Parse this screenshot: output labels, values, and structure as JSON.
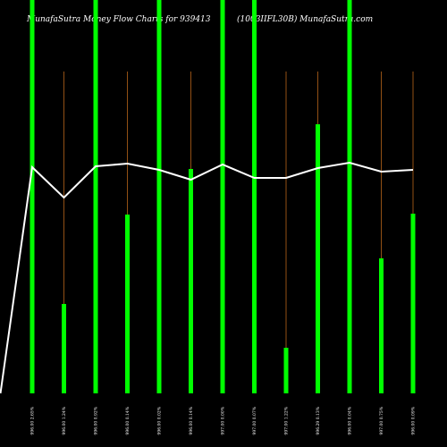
{
  "chart_data": {
    "type": "bar",
    "title": "MunafaSutra  Money Flow  Charts for 939413",
    "subtitle": "(1003IIFL30B) MunafaSutra.com",
    "categories": [
      "996.00 2.65%",
      "996.00 1.24%",
      "996.00 0.92%",
      "996.00 0.14%",
      "996.00 0.02%",
      "996.00 0.14%",
      "997.00 0.00%",
      "997.00 0.07%",
      "997.00 1.22%",
      "996.29 0.13%",
      "996.00 0.04%",
      "997.00 0.75%",
      "996.00 0.09%"
    ],
    "values": [
      440,
      100,
      440,
      200,
      440,
      251,
      440,
      440,
      51,
      301,
      440,
      151,
      201
    ],
    "color": "#00ff00",
    "ylim": [
      0,
      440
    ],
    "line": {
      "color": "#ffffff",
      "x": [
        -1,
        0,
        1,
        2,
        3,
        4,
        5,
        6,
        7,
        8,
        9,
        10,
        11,
        12
      ],
      "values": [
        0,
        253,
        219,
        254,
        257,
        250,
        239,
        256,
        241,
        241,
        252,
        258,
        248,
        250
      ]
    }
  }
}
